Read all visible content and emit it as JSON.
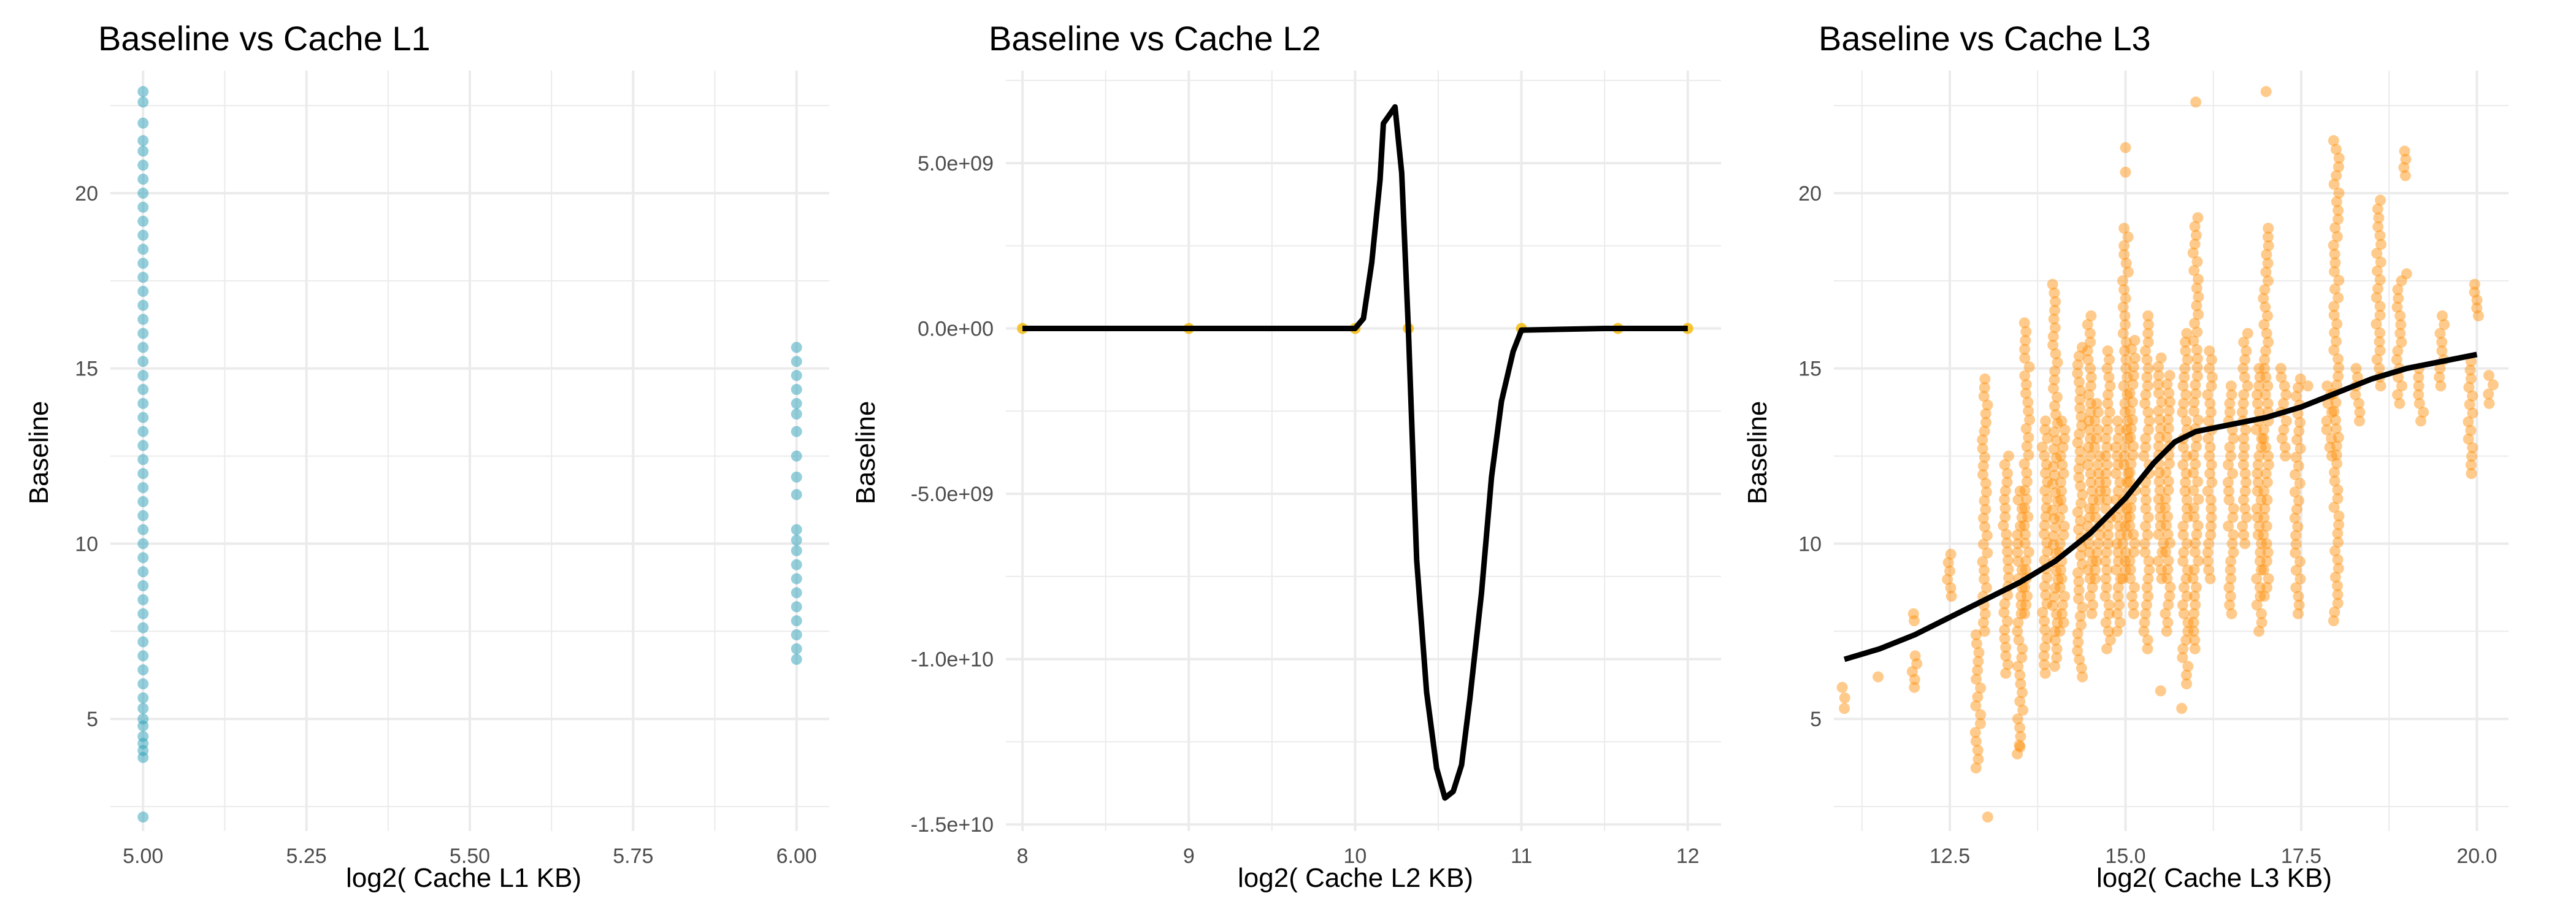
{
  "colors": {
    "l1_points": "#2aa0b8",
    "l2_points": "#f5b800",
    "l3_points": "#ff8c00",
    "smooth_line": "#000000",
    "grid": "#ebebeb"
  },
  "chart_data": [
    {
      "type": "scatter",
      "title": "Baseline vs Cache L1",
      "xlabel": "log2( Cache L1 KB)",
      "ylabel": "Baseline",
      "xlim": [
        4.95,
        6.05
      ],
      "ylim": [
        1.8,
        23.5
      ],
      "x_ticks": [
        "5.00",
        "5.25",
        "5.50",
        "5.75",
        "6.00"
      ],
      "x_tick_values": [
        5.0,
        5.25,
        5.5,
        5.75,
        6.0
      ],
      "y_ticks": [
        "5",
        "10",
        "15",
        "20"
      ],
      "y_tick_values": [
        5,
        10,
        15,
        20
      ],
      "grid": true,
      "point_color": "l1_points",
      "series": [
        {
          "points": [
            [
              5,
              2.2
            ],
            [
              5,
              3.9
            ],
            [
              5,
              4.1
            ],
            [
              5,
              4.3
            ],
            [
              5,
              4.5
            ],
            [
              5,
              4.8
            ],
            [
              5,
              5.0
            ],
            [
              5,
              5.3
            ],
            [
              5,
              5.6
            ],
            [
              5,
              6.0
            ],
            [
              5,
              6.4
            ],
            [
              5,
              6.8
            ],
            [
              5,
              7.2
            ],
            [
              5,
              7.6
            ],
            [
              5,
              8.0
            ],
            [
              5,
              8.4
            ],
            [
              5,
              8.8
            ],
            [
              5,
              9.2
            ],
            [
              5,
              9.6
            ],
            [
              5,
              10.0
            ],
            [
              5,
              10.4
            ],
            [
              5,
              10.8
            ],
            [
              5,
              11.2
            ],
            [
              5,
              11.6
            ],
            [
              5,
              12.0
            ],
            [
              5,
              12.4
            ],
            [
              5,
              12.8
            ],
            [
              5,
              13.2
            ],
            [
              5,
              13.6
            ],
            [
              5,
              14.0
            ],
            [
              5,
              14.4
            ],
            [
              5,
              14.8
            ],
            [
              5,
              15.2
            ],
            [
              5,
              15.6
            ],
            [
              5,
              16.0
            ],
            [
              5,
              16.4
            ],
            [
              5,
              16.8
            ],
            [
              5,
              17.2
            ],
            [
              5,
              17.6
            ],
            [
              5,
              18.0
            ],
            [
              5,
              18.4
            ],
            [
              5,
              18.8
            ],
            [
              5,
              19.2
            ],
            [
              5,
              19.6
            ],
            [
              5,
              20.0
            ],
            [
              5,
              20.4
            ],
            [
              5,
              20.8
            ],
            [
              5,
              21.2
            ],
            [
              5,
              21.5
            ],
            [
              5,
              22.0
            ],
            [
              5,
              22.6
            ],
            [
              5,
              22.9
            ],
            [
              6,
              6.7
            ],
            [
              6,
              7.0
            ],
            [
              6,
              7.4
            ],
            [
              6,
              7.8
            ],
            [
              6,
              8.2
            ],
            [
              6,
              8.6
            ],
            [
              6,
              9.0
            ],
            [
              6,
              9.4
            ],
            [
              6,
              9.8
            ],
            [
              6,
              10.1
            ],
            [
              6,
              10.4
            ],
            [
              6,
              11.4
            ],
            [
              6,
              11.9
            ],
            [
              6,
              12.5
            ],
            [
              6,
              13.2
            ],
            [
              6,
              13.7
            ],
            [
              6,
              14.0
            ],
            [
              6,
              14.4
            ],
            [
              6,
              14.8
            ],
            [
              6,
              15.2
            ],
            [
              6,
              15.6
            ]
          ]
        }
      ]
    },
    {
      "type": "line",
      "title": "Baseline vs Cache L2",
      "xlabel": "log2( Cache L2 KB)",
      "ylabel": "Baseline",
      "xlim": [
        7.9,
        12.2
      ],
      "ylim": [
        -15200000000.0,
        7800000000.0
      ],
      "x_ticks": [
        "8",
        "9",
        "10",
        "11",
        "12"
      ],
      "x_tick_values": [
        8,
        9,
        10,
        11,
        12
      ],
      "y_ticks": [
        "-1.5e+10",
        "-1.0e+10",
        "-5.0e+09",
        "0.0e+00",
        "5.0e+09"
      ],
      "y_tick_values": [
        -15000000000.0,
        -10000000000.0,
        -5000000000.0,
        0,
        5000000000.0
      ],
      "grid": true,
      "point_color": "l2_points",
      "line_color": "smooth_line",
      "points": [
        [
          8,
          0
        ],
        [
          9,
          0
        ],
        [
          10,
          0
        ],
        [
          10.32,
          0
        ],
        [
          11,
          0
        ],
        [
          11.58,
          0
        ],
        [
          12,
          0
        ]
      ],
      "smooth": [
        [
          8.0,
          0
        ],
        [
          9.0,
          0
        ],
        [
          9.8,
          0
        ],
        [
          10.0,
          0
        ],
        [
          10.05,
          300000000.0
        ],
        [
          10.1,
          2000000000.0
        ],
        [
          10.15,
          4500000000.0
        ],
        [
          10.17,
          6200000000.0
        ],
        [
          10.24,
          6700000000.0
        ],
        [
          10.28,
          4700000000.0
        ],
        [
          10.32,
          0
        ],
        [
          10.37,
          -7000000000.0
        ],
        [
          10.43,
          -11000000000.0
        ],
        [
          10.49,
          -13300000000.0
        ],
        [
          10.54,
          -14200000000.0
        ],
        [
          10.59,
          -14000000000.0
        ],
        [
          10.64,
          -13200000000.0
        ],
        [
          10.69,
          -11200000000.0
        ],
        [
          10.76,
          -8000000000.0
        ],
        [
          10.82,
          -4500000000.0
        ],
        [
          10.88,
          -2200000000.0
        ],
        [
          10.95,
          -700000000.0
        ],
        [
          11.0,
          -50000000.0
        ],
        [
          11.5,
          0
        ],
        [
          12.0,
          0
        ]
      ]
    },
    {
      "type": "scatter",
      "title": "Baseline vs Cache L3",
      "xlabel": "log2( Cache L3 KB)",
      "ylabel": "Baseline",
      "xlim": [
        10.85,
        20.45
      ],
      "ylim": [
        1.8,
        23.5
      ],
      "x_ticks": [
        "12.5",
        "15.0",
        "17.5",
        "20.0"
      ],
      "x_tick_values": [
        12.5,
        15.0,
        17.5,
        20.0
      ],
      "y_ticks": [
        "5",
        "10",
        "15",
        "20"
      ],
      "y_tick_values": [
        5,
        10,
        15,
        20
      ],
      "grid": true,
      "point_color": "l3_points",
      "line_color": "smooth_line",
      "columns": [
        [
          11,
          5.3,
          5.9
        ],
        [
          11.5,
          6.2,
          6.2
        ],
        [
          12,
          5.9,
          6.8
        ],
        [
          12,
          7.8,
          8.0
        ],
        [
          12.5,
          8.5,
          9.7
        ],
        [
          12.9,
          3.6,
          7.4
        ],
        [
          13,
          2.2,
          2.2
        ],
        [
          13,
          7.5,
          14.7
        ],
        [
          13.3,
          6.3,
          12.5
        ],
        [
          13.5,
          4.0,
          11.5
        ],
        [
          13.6,
          8.0,
          16.3
        ],
        [
          13.85,
          6.3,
          13.5
        ],
        [
          14,
          6.5,
          17.4
        ],
        [
          14.1,
          7.5,
          13.5
        ],
        [
          14.35,
          6.2,
          15.6
        ],
        [
          14.5,
          8.0,
          16.5
        ],
        [
          14.6,
          9.0,
          14.0
        ],
        [
          14.75,
          7.0,
          15.5
        ],
        [
          14.9,
          7.5,
          13.5
        ],
        [
          15,
          9.0,
          19.0
        ],
        [
          15.1,
          8.0,
          15.8
        ],
        [
          15.3,
          7.0,
          16.5
        ],
        [
          15.5,
          9.0,
          15.3
        ],
        [
          15.6,
          7.5,
          14.8
        ],
        [
          15.85,
          6.0,
          16.0
        ],
        [
          16,
          7.0,
          19.3
        ],
        [
          16.2,
          9.0,
          15.5
        ],
        [
          16.5,
          8.0,
          14.5
        ],
        [
          16.7,
          10.0,
          16.0
        ],
        [
          16.9,
          7.5,
          15.0
        ],
        [
          17,
          8.5,
          19.0
        ],
        [
          17.25,
          12.5,
          15.0
        ],
        [
          17.45,
          8.0,
          14.7
        ],
        [
          17.6,
          14.5,
          14.5
        ],
        [
          17.9,
          12.5,
          14.5
        ],
        [
          18,
          7.8,
          21.5
        ],
        [
          18.3,
          13.5,
          15.0
        ],
        [
          18.6,
          14.5,
          19.8
        ],
        [
          18.9,
          14.0,
          17.5
        ],
        [
          19,
          20.5,
          21.2
        ],
        [
          19.2,
          13.5,
          15.0
        ],
        [
          19.5,
          14.5,
          16.5
        ],
        [
          19.9,
          12.0,
          15.2
        ],
        [
          20,
          16.5,
          17.4
        ],
        [
          20.2,
          14.0,
          14.8
        ]
      ],
      "extra_points": [
        [
          16,
          22.6
        ],
        [
          17,
          22.9
        ],
        [
          15,
          20.6
        ],
        [
          15,
          21.3
        ],
        [
          15.5,
          5.8
        ],
        [
          15.8,
          5.3
        ],
        [
          13.5,
          4.2
        ],
        [
          19,
          17.7
        ]
      ],
      "smooth": [
        [
          11.0,
          6.7
        ],
        [
          11.5,
          7.0
        ],
        [
          12.0,
          7.4
        ],
        [
          12.5,
          7.9
        ],
        [
          13.0,
          8.4
        ],
        [
          13.5,
          8.9
        ],
        [
          14.0,
          9.5
        ],
        [
          14.5,
          10.3
        ],
        [
          15.0,
          11.3
        ],
        [
          15.4,
          12.3
        ],
        [
          15.7,
          12.9
        ],
        [
          16.0,
          13.2
        ],
        [
          16.5,
          13.4
        ],
        [
          17.0,
          13.6
        ],
        [
          17.5,
          13.9
        ],
        [
          18.0,
          14.3
        ],
        [
          18.5,
          14.7
        ],
        [
          19.0,
          15.0
        ],
        [
          19.5,
          15.2
        ],
        [
          20.0,
          15.4
        ]
      ]
    }
  ]
}
